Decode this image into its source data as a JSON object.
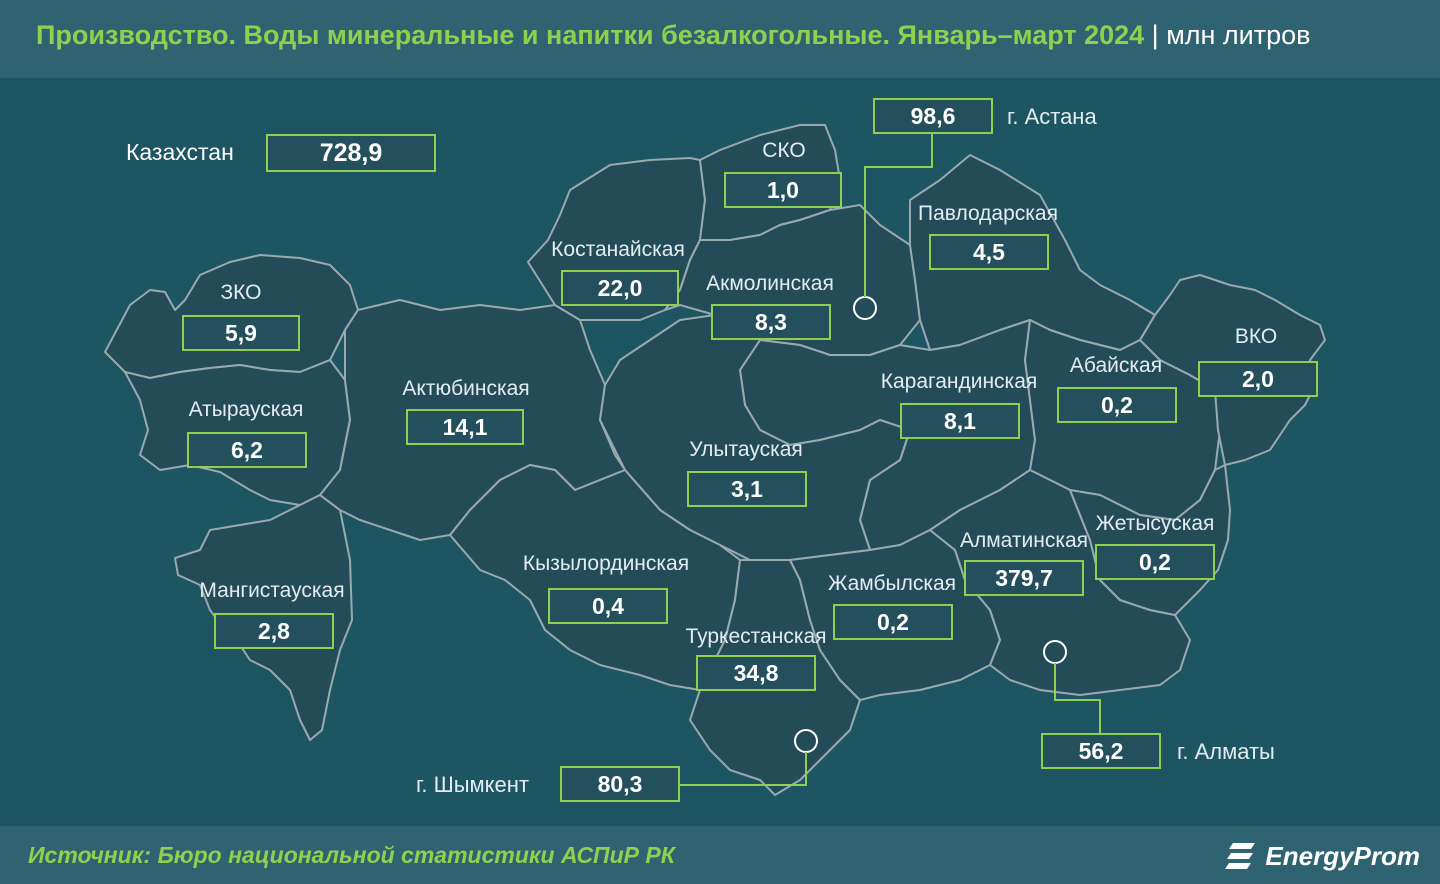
{
  "header": {
    "title": "Производство. Воды минеральные и напитки безалкогольные. Январь–март 2024",
    "separator": "|",
    "unit": "млн литров"
  },
  "map": {
    "country_total": {
      "label": "Казахстан",
      "value": "728,9"
    },
    "regions": [
      {
        "key": "zko",
        "label": "ЗКО",
        "value": "5,9"
      },
      {
        "key": "atyrau",
        "label": "Атырауская",
        "value": "6,2"
      },
      {
        "key": "mangistau",
        "label": "Мангистауская",
        "value": "2,8"
      },
      {
        "key": "aktobe",
        "label": "Актюбинская",
        "value": "14,1"
      },
      {
        "key": "kostanay",
        "label": "Костанайская",
        "value": "22,0"
      },
      {
        "key": "sko",
        "label": "СКО",
        "value": "1,0"
      },
      {
        "key": "akmola",
        "label": "Акмолинская",
        "value": "8,3"
      },
      {
        "key": "pavlodar",
        "label": "Павлодарская",
        "value": "4,5"
      },
      {
        "key": "karaganda",
        "label": "Карагандинская",
        "value": "8,1"
      },
      {
        "key": "abai",
        "label": "Абайская",
        "value": "0,2"
      },
      {
        "key": "vko",
        "label": "ВКО",
        "value": "2,0"
      },
      {
        "key": "ulytau",
        "label": "Улытауская",
        "value": "3,1"
      },
      {
        "key": "kyzylorda",
        "label": "Кызылординская",
        "value": "0,4"
      },
      {
        "key": "turkestan",
        "label": "Туркестанская",
        "value": "34,8"
      },
      {
        "key": "zhambyl",
        "label": "Жамбылская",
        "value": "0,2"
      },
      {
        "key": "almaty_reg",
        "label": "Алматинская",
        "value": "379,7"
      },
      {
        "key": "zhetysu",
        "label": "Жетысуская",
        "value": "0,2"
      }
    ],
    "cities": [
      {
        "key": "astana",
        "label": "г. Астана",
        "value": "98,6"
      },
      {
        "key": "almaty",
        "label": "г. Алматы",
        "value": "56,2"
      },
      {
        "key": "shymkent",
        "label": "г. Шымкент",
        "value": "80,3"
      }
    ],
    "colors": {
      "background": "#1d5563",
      "region_fill": "#244c58",
      "border": "#9aa9ae",
      "accent": "#8fd14f",
      "box_fill": "#23505c"
    }
  },
  "footer": {
    "source": "Источник: Бюро национальной статистики АСПиР РК",
    "logo_text": "EnergyProm",
    "logo_icon": "energyprom-logo-icon"
  }
}
